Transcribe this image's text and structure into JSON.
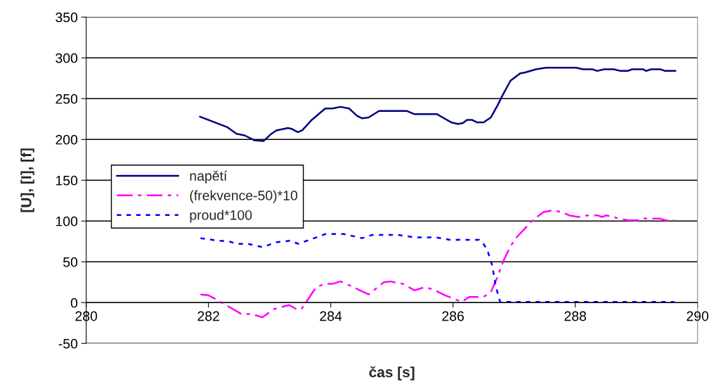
{
  "chart_data": {
    "type": "line",
    "xlabel": "čas [s]",
    "ylabel": "[U], [I], [f]",
    "xlim": [
      280,
      290
    ],
    "xticks": [
      280,
      282,
      284,
      286,
      288,
      290
    ],
    "ylim": [
      -50,
      350
    ],
    "yticks": [
      -50,
      0,
      50,
      100,
      150,
      200,
      250,
      300,
      350
    ],
    "grid": "y",
    "legend": "left",
    "marker": "none",
    "series": [
      {
        "name": "napětí",
        "color": "#000080",
        "line_style": "solid",
        "x": [
          281.86,
          282.31,
          282.46,
          282.59,
          282.75,
          282.9,
          283.03,
          283.11,
          283.3,
          283.36,
          283.46,
          283.53,
          283.69,
          283.91,
          284.03,
          284.16,
          284.3,
          284.43,
          284.51,
          284.62,
          284.79,
          285.14,
          285.24,
          285.37,
          285.74,
          285.83,
          285.97,
          286.08,
          286.16,
          286.23,
          286.31,
          286.39,
          286.5,
          286.62,
          286.73,
          286.81,
          286.94,
          287.1,
          287.17,
          287.36,
          287.52,
          288.01,
          288.13,
          288.28,
          288.36,
          288.47,
          288.63,
          288.74,
          288.86,
          288.93,
          289.11,
          289.16,
          289.24,
          289.39,
          289.47,
          289.64
        ],
        "values": [
          228,
          215,
          207,
          205,
          199,
          198,
          207,
          211,
          214,
          213,
          209,
          211,
          224,
          238,
          238,
          240,
          238,
          229,
          226,
          227,
          235,
          235,
          235,
          231,
          231,
          227,
          221,
          219,
          220,
          224,
          224,
          221,
          221,
          227,
          242,
          254,
          272,
          281,
          282,
          286,
          288,
          288,
          286,
          286,
          284,
          286,
          286,
          284,
          284,
          286,
          286,
          284,
          286,
          286,
          284,
          284
        ]
      },
      {
        "name": "(frekvence-50)*10",
        "color": "#ff00ff",
        "line_style": "dashed",
        "x": [
          281.87,
          282.0,
          282.15,
          282.31,
          282.54,
          282.71,
          282.88,
          283.07,
          283.32,
          283.46,
          283.53,
          283.76,
          283.91,
          284.03,
          284.16,
          284.34,
          284.62,
          284.87,
          284.99,
          285.03,
          285.18,
          285.37,
          285.54,
          285.68,
          285.87,
          286.14,
          286.27,
          286.5,
          286.62,
          286.73,
          286.83,
          286.94,
          287.04,
          287.29,
          287.48,
          287.63,
          287.78,
          287.9,
          288.05,
          288.21,
          288.36,
          288.44,
          288.51,
          288.67,
          288.86,
          289.05,
          289.11,
          289.39,
          289.47,
          289.62
        ],
        "values": [
          10,
          9,
          3,
          -4,
          -14,
          -14,
          -18,
          -8,
          -3,
          -9,
          -7,
          19,
          23,
          23,
          26,
          20,
          10,
          25,
          26,
          25,
          23,
          15,
          19,
          16,
          9,
          1,
          7,
          7,
          13,
          32,
          52,
          69,
          80,
          100,
          111,
          113,
          111,
          107,
          105,
          107,
          107,
          105,
          107,
          104,
          101,
          101,
          103,
          103,
          101,
          101
        ]
      },
      {
        "name": "proud*100",
        "color": "#0000ff",
        "line_style": "dotted",
        "x": [
          281.87,
          282.15,
          282.34,
          282.46,
          282.65,
          282.88,
          283.11,
          283.34,
          283.47,
          283.69,
          283.91,
          284.22,
          284.51,
          284.68,
          285.1,
          285.37,
          285.72,
          285.95,
          286.29,
          286.43,
          286.48,
          286.56,
          286.64,
          286.7,
          286.77,
          286.87,
          289.62
        ],
        "values": [
          79,
          76,
          75,
          72,
          72,
          68,
          74,
          76,
          72,
          78,
          84,
          84,
          79,
          83,
          83,
          80,
          80,
          77,
          77,
          77,
          74,
          65,
          46,
          20,
          1,
          1,
          1
        ]
      }
    ]
  }
}
